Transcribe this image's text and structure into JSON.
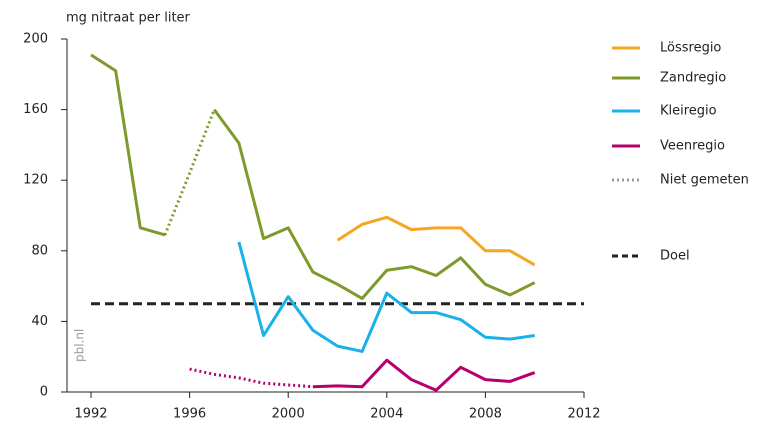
{
  "chart_data": {
    "type": "line",
    "ylabel": "mg nitraat per liter",
    "watermark": "pbl.nl",
    "x": [
      1992,
      1993,
      1994,
      1995,
      1996,
      1997,
      1998,
      1999,
      2000,
      2001,
      2002,
      2003,
      2004,
      2005,
      2006,
      2007,
      2008,
      2009,
      2010
    ],
    "series": [
      {
        "name": "Lössregio",
        "color": "#f5a623",
        "values": [
          null,
          null,
          null,
          null,
          null,
          null,
          null,
          null,
          null,
          null,
          86,
          95,
          99,
          92,
          93,
          93,
          80,
          80,
          72
        ]
      },
      {
        "name": "Zandregio",
        "color": "#7d9a2b",
        "values": [
          191,
          182,
          93,
          89,
          null,
          160,
          141,
          87,
          93,
          68,
          61,
          53,
          69,
          71,
          66,
          76,
          61,
          55,
          62
        ],
        "dotted_values": [
          null,
          null,
          null,
          89,
          124,
          160,
          null,
          null,
          null,
          null,
          null,
          null,
          null,
          null,
          null,
          null,
          null,
          null,
          null
        ]
      },
      {
        "name": "Kleiregio",
        "color": "#1ab0e8",
        "values": [
          null,
          null,
          null,
          null,
          null,
          null,
          85,
          32,
          54,
          35,
          26,
          23,
          56,
          45,
          45,
          41,
          31,
          30,
          32
        ]
      },
      {
        "name": "Veenregio",
        "color": "#b5006e",
        "values": [
          null,
          null,
          null,
          null,
          null,
          null,
          null,
          null,
          null,
          3,
          3.5,
          3,
          18,
          7,
          1,
          14,
          7,
          6,
          11
        ],
        "dotted_values": [
          null,
          null,
          null,
          null,
          13,
          10,
          8,
          5,
          4,
          3,
          null,
          null,
          null,
          null,
          null,
          null,
          null,
          null,
          null
        ]
      }
    ],
    "not_measured": {
      "name": "Niet gemeten",
      "color": "#999999"
    },
    "target": {
      "name": "Doel",
      "value": 50,
      "color": "#222222"
    },
    "xlim": [
      1992,
      2012
    ],
    "xticks": [
      1992,
      1996,
      2000,
      2004,
      2008,
      2012
    ],
    "ylim": [
      0,
      200
    ],
    "yticks": [
      0,
      40,
      80,
      120,
      160,
      200
    ],
    "grid": false
  }
}
